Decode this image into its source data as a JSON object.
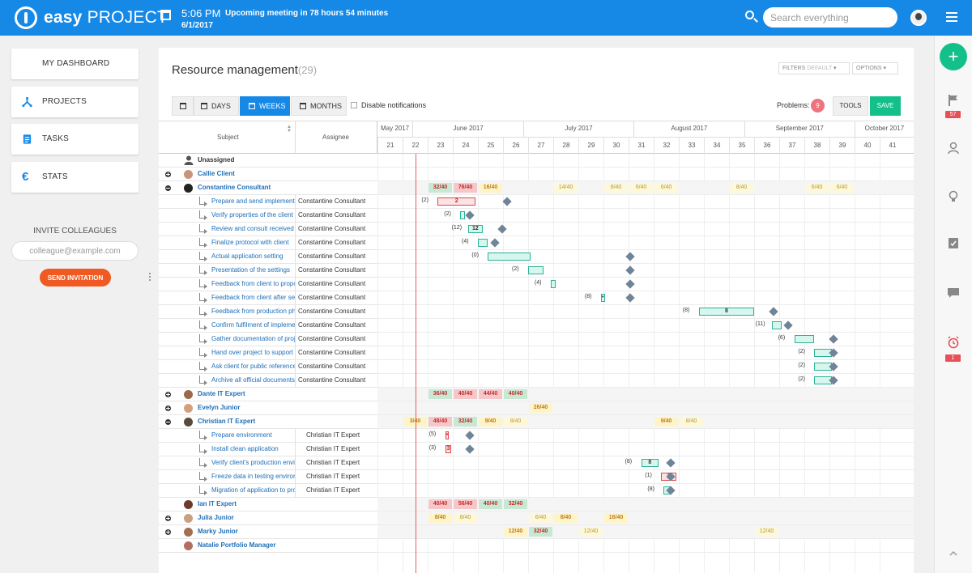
{
  "header": {
    "logo_bold": "easy",
    "logo_rest": "PROJECT",
    "time": "5:06 PM",
    "meeting": "Upcoming meeting in 78 hours 54 minutes",
    "date": "6/1/2017",
    "search_placeholder": "Search everything"
  },
  "sidebar": {
    "items": [
      {
        "label": "MY DASHBOARD",
        "icon": "dashboard-icon"
      },
      {
        "label": "PROJECTS",
        "icon": "projects-icon"
      },
      {
        "label": "TASKS",
        "icon": "tasks-icon"
      },
      {
        "label": "STATS",
        "icon": "euro-icon"
      }
    ],
    "invite_title": "INVITE COLLEAGUES",
    "invite_placeholder": "colleague@example.com",
    "send_label": "SEND INVITATION"
  },
  "rightbar": {
    "plus": "+",
    "flag_badge": "57",
    "alarm_badge": "1"
  },
  "panel": {
    "title": "Resource management",
    "count": "(29)",
    "filters_label": "FILTERS",
    "filters_value": "DEFAULT",
    "options_label": "OPTIONS",
    "tabs": [
      {
        "label": ""
      },
      {
        "label": "DAYS"
      },
      {
        "label": "WEEKS"
      },
      {
        "label": "MONTHS"
      }
    ],
    "disable_notifications": "Disable notifications",
    "problems_label": "Problems:",
    "problems_count": "9",
    "tools_label": "TOOLS",
    "save_label": "SAVE",
    "col_subject": "Subject",
    "col_assignee": "Assignee"
  },
  "timeline": {
    "months": [
      "May 2017",
      "June 2017",
      "July 2017",
      "August 2017",
      "September 2017",
      "October 2017"
    ],
    "weeks": [
      "21",
      "22",
      "23",
      "24",
      "25",
      "26",
      "27",
      "28",
      "29",
      "30",
      "31",
      "32",
      "33",
      "34",
      "35",
      "36",
      "37",
      "38",
      "39",
      "40",
      "41"
    ]
  },
  "rows": [
    {
      "type": "unassigned",
      "subject": "Unassigned",
      "assignee": ""
    },
    {
      "type": "user",
      "toggle": "plus",
      "subject": "Callie Client",
      "assignee": "",
      "avatar_color": "#c8957a"
    },
    {
      "type": "user",
      "toggle": "minus",
      "subject": "Constantine Consultant",
      "assignee": "",
      "avatar_color": "#222222",
      "cells": [
        {
          "w": 23,
          "v": "32/40",
          "c": "green"
        },
        {
          "w": 24,
          "v": "76/40",
          "c": "red"
        },
        {
          "w": 25,
          "v": "16/40",
          "c": "yellow"
        },
        {
          "w": 28,
          "v": "14/40",
          "c": "yellowdim"
        },
        {
          "w": 30,
          "v": "8/40",
          "c": "yellowdim"
        },
        {
          "w": 31,
          "v": "6/40",
          "c": "yellowdim"
        },
        {
          "w": 32,
          "v": "6/40",
          "c": "yellowdim"
        },
        {
          "w": 35,
          "v": "8/40",
          "c": "yellowdim"
        },
        {
          "w": 38,
          "v": "6/40",
          "c": "yellowdim"
        },
        {
          "w": 39,
          "v": "6/40",
          "c": "yellowdim"
        }
      ]
    },
    {
      "type": "task",
      "subject": "Prepare and send implementation",
      "assignee": "Constantine Consultant",
      "bar": {
        "s": 23.4,
        "e": 24.9,
        "c": "red",
        "v": "2"
      },
      "plab": "(2)",
      "dia": 26
    },
    {
      "type": "task",
      "subject": "Verify properties of the client",
      "assignee": "Constantine Consultant",
      "bar": {
        "s": 24.3,
        "e": 24.5,
        "c": "green",
        "v": ""
      },
      "plab": "(2)",
      "dia": 24.5
    },
    {
      "type": "task",
      "subject": "Review and consult received",
      "assignee": "Constantine Consultant",
      "bar": {
        "s": 24.6,
        "e": 25.2,
        "c": "green",
        "v": "12"
      },
      "plab": "(12)",
      "dia": 25.8
    },
    {
      "type": "task",
      "subject": "Finalize protocol with client",
      "assignee": "Constantine Consultant",
      "bar": {
        "s": 25.0,
        "e": 25.4,
        "c": "green",
        "v": ""
      },
      "plab": "(4)",
      "dia": 25.5
    },
    {
      "type": "task",
      "subject": "Actual application setting",
      "assignee": "Constantine Consultant",
      "bar": {
        "s": 25.4,
        "e": 27.1,
        "c": "green",
        "v": ""
      },
      "plab": "(0)",
      "dia": 30.9
    },
    {
      "type": "task",
      "subject": "Presentation of the settings",
      "assignee": "Constantine Consultant",
      "bar": {
        "s": 27.0,
        "e": 27.6,
        "c": "green",
        "v": ""
      },
      "plab": "(2)",
      "dia": 30.9
    },
    {
      "type": "task",
      "subject": "Feedback from client to proposal",
      "assignee": "Constantine Consultant",
      "bar": {
        "s": 27.9,
        "e": 28.1,
        "c": "green",
        "v": ""
      },
      "plab": "(4)",
      "dia": 30.9
    },
    {
      "type": "task",
      "subject": "Feedback from client after setup",
      "assignee": "Constantine Consultant",
      "bar": {
        "s": 29.9,
        "e": 30.05,
        "c": "green",
        "v": "•"
      },
      "plab": "(8)",
      "dia": 30.9
    },
    {
      "type": "task",
      "subject": "Feedback from production phase",
      "assignee": "Constantine Consultant",
      "bar": {
        "s": 33.8,
        "e": 36.0,
        "c": "green",
        "v": "8"
      },
      "plab": "(8)",
      "dia": 36.6
    },
    {
      "type": "task",
      "subject": "Confirm fulfilment of implementation",
      "assignee": "Constantine Consultant",
      "bar": {
        "s": 36.7,
        "e": 37.1,
        "c": "green",
        "v": ""
      },
      "plab": "(11)",
      "dia": 37.2
    },
    {
      "type": "task",
      "subject": "Gather documentation of project",
      "assignee": "Constantine Consultant",
      "bar": {
        "s": 37.6,
        "e": 38.4,
        "c": "green",
        "v": ""
      },
      "plab": "(6)",
      "dia": 39.0
    },
    {
      "type": "task",
      "subject": "Hand over project to support",
      "assignee": "Constantine Consultant",
      "bar": {
        "s": 38.4,
        "e": 39.1,
        "c": "green",
        "v": ""
      },
      "plab": "(2)",
      "dia": 39.0
    },
    {
      "type": "task",
      "subject": "Ask client for public reference",
      "assignee": "Constantine Consultant",
      "bar": {
        "s": 38.4,
        "e": 39.1,
        "c": "green",
        "v": ""
      },
      "plab": "(2)",
      "dia": 39.0
    },
    {
      "type": "task",
      "subject": "Archive all official documents",
      "assignee": "Constantine Consultant",
      "bar": {
        "s": 38.4,
        "e": 39.1,
        "c": "green",
        "v": ""
      },
      "plab": "(2)",
      "dia": 39.0
    },
    {
      "type": "user",
      "toggle": "plus",
      "subject": "Dante IT Expert",
      "assignee": "",
      "avatar_color": "#9a6a4a",
      "cells": [
        {
          "w": 23,
          "v": "36/40",
          "c": "green"
        },
        {
          "w": 24,
          "v": "40/40",
          "c": "red"
        },
        {
          "w": 25,
          "v": "44/40",
          "c": "red"
        },
        {
          "w": 26,
          "v": "40/40",
          "c": "green"
        }
      ]
    },
    {
      "type": "user",
      "toggle": "plus",
      "subject": "Evelyn Junior",
      "assignee": "",
      "avatar_color": "#d4a07a",
      "cells": [
        {
          "w": 27,
          "v": "26/40",
          "c": "yellow"
        }
      ]
    },
    {
      "type": "user",
      "toggle": "minus",
      "subject": "Christian IT Expert",
      "assignee": "",
      "avatar_color": "#5a4a3a",
      "cells": [
        {
          "w": 22,
          "v": "3/40",
          "c": "yellow"
        },
        {
          "w": 23,
          "v": "48/40",
          "c": "red"
        },
        {
          "w": 24,
          "v": "32/40",
          "c": "green"
        },
        {
          "w": 25,
          "v": "9/40",
          "c": "yellow"
        },
        {
          "w": 26,
          "v": "8/40",
          "c": "yellowdim"
        },
        {
          "w": 32,
          "v": "9/40",
          "c": "yellow"
        },
        {
          "w": 33,
          "v": "8/40",
          "c": "yellowdim"
        }
      ]
    },
    {
      "type": "task",
      "subject": "Prepare environment",
      "assignee": "Christian IT Expert",
      "bar": {
        "s": 23.7,
        "e": 23.85,
        "c": "red",
        "v": "•"
      },
      "plab": "(5)",
      "dia": 24.5
    },
    {
      "type": "task",
      "subject": "Install clean application",
      "assignee": "Christian IT Expert",
      "bar": {
        "s": 23.7,
        "e": 23.95,
        "c": "red",
        "v": "3"
      },
      "plab": "(3)",
      "dia": 24.5
    },
    {
      "type": "task",
      "subject": "Verify client's production environment",
      "assignee": "Christian IT Expert",
      "bar": {
        "s": 31.5,
        "e": 32.2,
        "c": "green",
        "v": "8"
      },
      "plab": "(8)",
      "dia": 32.5
    },
    {
      "type": "task",
      "subject": "Freeze data in testing environment",
      "assignee": "Christian IT Expert",
      "bar": {
        "s": 32.3,
        "e": 32.9,
        "c": "red",
        "v": "1"
      },
      "plab": "(1)",
      "dia": 32.5
    },
    {
      "type": "task",
      "subject": "Migration of application to production",
      "assignee": "Christian IT Expert",
      "bar": {
        "s": 32.4,
        "e": 32.7,
        "c": "green",
        "v": ""
      },
      "plab": "(8)",
      "dia": 32.5
    },
    {
      "type": "user",
      "toggle": "none",
      "subject": "Ian IT Expert",
      "assignee": "",
      "avatar_color": "#6a3a2a",
      "cells": [
        {
          "w": 23,
          "v": "40/40",
          "c": "red"
        },
        {
          "w": 24,
          "v": "56/40",
          "c": "red"
        },
        {
          "w": 25,
          "v": "40/40",
          "c": "green"
        },
        {
          "w": 26,
          "v": "32/40",
          "c": "green"
        }
      ]
    },
    {
      "type": "user",
      "toggle": "plus",
      "subject": "Julia Junior",
      "assignee": "",
      "avatar_color": "#c9a080",
      "cells": [
        {
          "w": 23,
          "v": "8/40",
          "c": "yellow"
        },
        {
          "w": 24,
          "v": "8/40",
          "c": "yellowdim"
        },
        {
          "w": 27,
          "v": "6/40",
          "c": "yellowdim"
        },
        {
          "w": 28,
          "v": "8/40",
          "c": "yellow"
        },
        {
          "w": 30,
          "v": "16/40",
          "c": "yellow"
        }
      ]
    },
    {
      "type": "user",
      "toggle": "plus",
      "subject": "Marky Junior",
      "assignee": "",
      "avatar_color": "#a07050",
      "cells": [
        {
          "w": 26,
          "v": "12/40",
          "c": "yellow"
        },
        {
          "w": 27,
          "v": "32/40",
          "c": "green"
        },
        {
          "w": 29,
          "v": "12/40",
          "c": "yellowdim"
        },
        {
          "w": 36,
          "v": "12/40",
          "c": "yellowdim"
        }
      ]
    },
    {
      "type": "user",
      "toggle": "none",
      "subject": "Natalie Portfolio Manager",
      "assignee": "",
      "avatar_color": "#b07060"
    }
  ]
}
